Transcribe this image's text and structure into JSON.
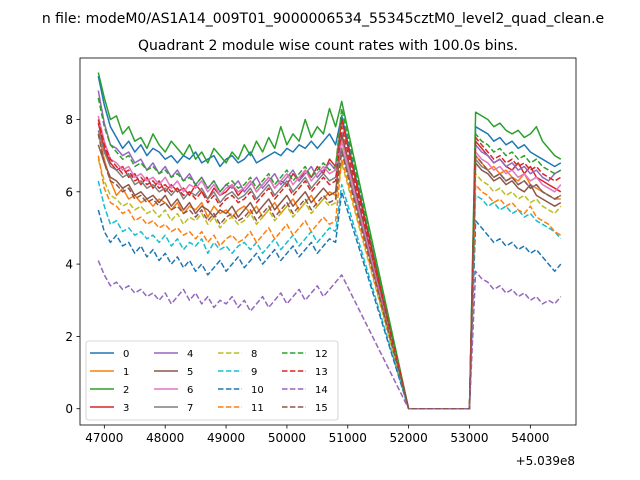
{
  "figure": {
    "suptitle": "n file: modeM0/AS1A14_009T01_9000006534_55345cztM0_level2_quad_clean.e",
    "title": "Quadrant 2 module wise count rates with 100.0s bins.",
    "offset_label": "+5.039e8"
  },
  "chart_data": {
    "type": "line",
    "title": "Quadrant 2 module wise count rates with 100.0s bins.",
    "xlabel": "",
    "ylabel": "",
    "x_offset": 503900000,
    "xlim": [
      46600,
      54750
    ],
    "ylim": [
      -0.45,
      9.7
    ],
    "xticks": [
      47000,
      48000,
      49000,
      50000,
      51000,
      52000,
      53000,
      54000
    ],
    "yticks": [
      0,
      2,
      4,
      6,
      8
    ],
    "grid": false,
    "legend_loc": "lower left",
    "legend_columns": 4,
    "x_start": 46900,
    "x_step": 100,
    "gap": {
      "start": 52000,
      "end": 53000,
      "value": 0
    },
    "series": [
      {
        "name": "0",
        "color": "#1f77b4",
        "dash": "solid",
        "seg1": [
          9.2,
          8.4,
          7.8,
          7.5,
          7.2,
          7.4,
          7.1,
          7.3,
          7.0,
          7.2,
          7.1,
          6.9,
          7.0,
          6.8,
          7.0,
          6.9,
          7.1,
          6.8,
          6.9,
          7.0,
          6.7,
          6.9,
          7.0,
          6.8,
          6.9,
          7.1,
          6.8,
          6.9,
          7.0,
          7.1,
          7.0,
          7.2,
          7.1,
          7.3,
          7.2,
          7.4,
          7.2,
          7.4,
          7.6,
          7.3,
          8.1
        ],
        "seg2": [
          7.8,
          7.7,
          7.6,
          7.4,
          7.5,
          7.3,
          7.4,
          7.2,
          7.3,
          7.1,
          7.0,
          6.9,
          6.8,
          6.7,
          6.8
        ]
      },
      {
        "name": "1",
        "color": "#ff7f0e",
        "dash": "solid",
        "seg1": [
          7.6,
          6.9,
          6.3,
          5.9,
          6.1,
          5.8,
          5.9,
          5.7,
          5.8,
          5.6,
          5.8,
          5.7,
          5.5,
          5.7,
          5.4,
          5.6,
          5.5,
          5.7,
          5.3,
          5.6,
          5.4,
          5.5,
          5.3,
          5.5,
          5.6,
          5.4,
          5.6,
          5.3,
          5.5,
          5.7,
          5.4,
          5.6,
          5.8,
          5.5,
          5.7,
          5.9,
          5.6,
          5.8,
          6.0,
          5.9,
          7.5
        ],
        "seg2": [
          7.0,
          6.8,
          6.6,
          6.7,
          6.5,
          6.6,
          6.4,
          6.3,
          6.5,
          6.2,
          6.1,
          6.0,
          5.9,
          5.8,
          5.8
        ]
      },
      {
        "name": "2",
        "color": "#2ca02c",
        "dash": "solid",
        "seg1": [
          9.3,
          8.6,
          8.0,
          8.1,
          7.6,
          7.8,
          7.4,
          7.5,
          7.2,
          7.6,
          7.3,
          7.1,
          7.4,
          7.2,
          7.0,
          7.3,
          6.9,
          7.1,
          6.8,
          7.2,
          7.0,
          6.8,
          7.1,
          6.9,
          7.3,
          7.0,
          7.4,
          7.1,
          7.5,
          7.2,
          7.8,
          7.3,
          7.6,
          7.4,
          8.0,
          7.5,
          7.8,
          7.6,
          8.3,
          7.8,
          8.5
        ],
        "seg2": [
          8.2,
          8.1,
          8.0,
          7.8,
          7.9,
          7.7,
          7.6,
          7.7,
          7.5,
          7.6,
          7.8,
          7.4,
          7.2,
          7.0,
          6.9
        ]
      },
      {
        "name": "3",
        "color": "#d62728",
        "dash": "solid",
        "seg1": [
          7.9,
          7.2,
          6.8,
          6.6,
          6.7,
          6.4,
          6.5,
          6.2,
          6.4,
          6.1,
          6.3,
          6.0,
          6.2,
          6.0,
          6.1,
          5.9,
          6.2,
          6.0,
          5.8,
          6.1,
          5.9,
          6.0,
          6.2,
          5.9,
          6.1,
          6.3,
          6.0,
          6.2,
          6.4,
          6.1,
          6.3,
          6.2,
          6.5,
          6.3,
          6.6,
          6.4,
          6.7,
          6.5,
          6.9,
          6.7,
          8.0
        ],
        "seg2": [
          7.4,
          7.2,
          7.0,
          6.8,
          6.9,
          6.7,
          6.6,
          6.8,
          6.5,
          6.7,
          6.4,
          6.3,
          6.2,
          6.1,
          6.0
        ]
      },
      {
        "name": "4",
        "color": "#9467bd",
        "dash": "solid",
        "seg1": [
          8.8,
          7.9,
          7.3,
          7.2,
          7.0,
          7.1,
          6.8,
          6.9,
          6.6,
          6.8,
          6.5,
          6.7,
          6.4,
          6.6,
          6.3,
          6.5,
          6.2,
          6.4,
          6.1,
          6.3,
          6.0,
          6.2,
          6.1,
          6.3,
          6.0,
          6.2,
          6.4,
          6.1,
          6.3,
          6.5,
          6.2,
          6.4,
          6.6,
          6.3,
          6.5,
          6.7,
          6.4,
          6.6,
          6.8,
          6.6,
          7.6
        ],
        "seg2": [
          7.3,
          7.1,
          7.0,
          6.8,
          6.9,
          6.7,
          6.8,
          6.6,
          6.7,
          6.5,
          6.6,
          6.4,
          6.3,
          6.5,
          6.6
        ]
      },
      {
        "name": "5",
        "color": "#8c564b",
        "dash": "solid",
        "seg1": [
          7.3,
          6.8,
          6.4,
          6.3,
          6.1,
          6.2,
          5.9,
          6.0,
          5.8,
          5.9,
          5.7,
          5.9,
          5.6,
          5.8,
          5.5,
          5.7,
          5.4,
          5.6,
          5.5,
          5.3,
          5.5,
          5.4,
          5.6,
          5.3,
          5.5,
          5.7,
          5.4,
          5.6,
          5.8,
          5.5,
          5.7,
          5.9,
          5.6,
          5.8,
          6.0,
          5.7,
          5.9,
          6.1,
          5.9,
          6.0,
          7.6
        ],
        "seg2": [
          6.8,
          6.6,
          6.5,
          6.3,
          6.4,
          6.2,
          6.3,
          6.1,
          6.0,
          6.2,
          5.9,
          5.8,
          5.7,
          5.6,
          5.7
        ]
      },
      {
        "name": "6",
        "color": "#e377c2",
        "dash": "solid",
        "seg1": [
          8.1,
          7.4,
          6.9,
          6.8,
          6.6,
          6.7,
          6.4,
          6.5,
          6.3,
          6.4,
          6.2,
          6.4,
          6.1,
          6.3,
          6.0,
          6.2,
          6.1,
          6.3,
          6.0,
          6.2,
          5.9,
          6.1,
          6.2,
          6.0,
          6.1,
          6.3,
          6.0,
          6.2,
          6.4,
          6.1,
          6.3,
          6.5,
          6.2,
          6.4,
          6.6,
          6.3,
          6.5,
          6.7,
          6.5,
          6.6,
          7.4
        ],
        "seg2": [
          7.1,
          6.9,
          6.8,
          6.6,
          6.7,
          6.5,
          6.6,
          6.4,
          6.5,
          6.3,
          6.4,
          6.2,
          6.1,
          6.0,
          6.2
        ]
      },
      {
        "name": "7",
        "color": "#7f7f7f",
        "dash": "solid",
        "seg1": [
          7.7,
          7.1,
          6.7,
          6.6,
          6.4,
          6.5,
          6.2,
          6.3,
          6.1,
          6.2,
          6.0,
          6.1,
          5.9,
          6.1,
          5.8,
          6.0,
          5.9,
          6.1,
          5.8,
          6.0,
          5.7,
          5.9,
          6.0,
          5.8,
          5.9,
          6.1,
          5.8,
          6.0,
          6.2,
          5.9,
          6.1,
          6.3,
          6.0,
          6.2,
          6.4,
          6.1,
          6.3,
          6.5,
          6.3,
          6.4,
          7.2
        ],
        "seg2": [
          6.9,
          6.7,
          6.6,
          6.4,
          6.5,
          6.3,
          6.4,
          6.2,
          6.3,
          6.1,
          6.2,
          6.0,
          5.9,
          5.8,
          5.9
        ]
      },
      {
        "name": "8",
        "color": "#bcbd22",
        "dash": "dashed",
        "seg1": [
          6.9,
          6.3,
          5.9,
          5.8,
          5.6,
          5.7,
          5.5,
          5.6,
          5.4,
          5.5,
          5.3,
          5.5,
          5.2,
          5.4,
          5.1,
          5.3,
          5.2,
          5.4,
          5.1,
          5.3,
          5.0,
          5.2,
          5.3,
          5.1,
          5.2,
          5.4,
          5.1,
          5.3,
          5.5,
          5.2,
          5.4,
          5.6,
          5.3,
          5.5,
          5.7,
          5.4,
          5.6,
          5.8,
          5.6,
          5.7,
          6.8
        ],
        "seg2": [
          6.5,
          6.3,
          6.2,
          6.0,
          6.1,
          5.9,
          6.0,
          5.8,
          5.9,
          5.7,
          5.8,
          5.6,
          5.5,
          5.4,
          5.6
        ]
      },
      {
        "name": "9",
        "color": "#17becf",
        "dash": "dashed",
        "seg1": [
          6.3,
          5.6,
          5.1,
          5.2,
          4.9,
          5.0,
          4.8,
          4.9,
          4.7,
          4.8,
          4.6,
          4.8,
          4.5,
          4.7,
          4.4,
          4.6,
          4.5,
          4.7,
          4.3,
          4.6,
          4.4,
          4.5,
          4.3,
          4.5,
          4.6,
          4.4,
          4.6,
          4.3,
          4.5,
          4.7,
          4.4,
          4.6,
          4.8,
          4.5,
          4.7,
          4.9,
          4.6,
          4.8,
          5.0,
          4.9,
          6.2
        ],
        "seg2": [
          5.9,
          5.8,
          5.6,
          5.7,
          5.5,
          5.6,
          5.4,
          5.5,
          5.3,
          5.4,
          5.2,
          5.1,
          5.0,
          4.9,
          4.7
        ]
      },
      {
        "name": "10",
        "color": "#1f77b4",
        "dash": "dashed",
        "seg1": [
          5.5,
          4.9,
          4.6,
          4.8,
          4.5,
          4.6,
          4.3,
          4.5,
          4.2,
          4.4,
          4.1,
          4.3,
          4.0,
          4.2,
          3.9,
          4.1,
          3.8,
          4.0,
          3.7,
          3.9,
          4.1,
          3.8,
          4.0,
          4.2,
          3.9,
          4.1,
          4.3,
          4.0,
          4.2,
          4.4,
          4.1,
          4.3,
          4.5,
          4.2,
          4.4,
          4.6,
          4.3,
          4.5,
          4.7,
          4.6,
          6.0
        ],
        "seg2": [
          5.2,
          5.0,
          4.8,
          4.6,
          4.7,
          4.5,
          4.6,
          4.4,
          4.5,
          4.3,
          4.4,
          4.2,
          4.0,
          3.8,
          4.0
        ]
      },
      {
        "name": "11",
        "color": "#ff7f0e",
        "dash": "dashed",
        "seg1": [
          7.0,
          6.1,
          5.7,
          5.6,
          5.4,
          5.5,
          5.2,
          5.3,
          5.1,
          5.2,
          5.0,
          5.1,
          4.9,
          5.0,
          4.8,
          4.9,
          4.7,
          4.9,
          4.6,
          4.8,
          4.5,
          4.7,
          4.8,
          4.6,
          4.7,
          4.9,
          4.6,
          4.8,
          5.0,
          4.7,
          4.9,
          5.1,
          4.8,
          5.0,
          5.2,
          4.9,
          5.1,
          5.3,
          5.1,
          5.2,
          6.9
        ],
        "seg2": [
          6.2,
          6.0,
          5.9,
          5.7,
          5.8,
          5.6,
          5.7,
          5.5,
          5.4,
          5.6,
          5.3,
          5.2,
          5.1,
          4.9,
          4.8
        ]
      },
      {
        "name": "12",
        "color": "#2ca02c",
        "dash": "dashed",
        "seg1": [
          8.6,
          7.8,
          7.3,
          7.1,
          6.9,
          7.0,
          6.7,
          6.8,
          6.6,
          6.7,
          6.5,
          6.6,
          6.4,
          6.5,
          6.3,
          6.4,
          6.2,
          6.4,
          6.1,
          6.3,
          6.0,
          6.2,
          6.3,
          6.1,
          6.2,
          6.4,
          6.1,
          6.3,
          6.5,
          6.2,
          6.4,
          6.6,
          6.3,
          6.5,
          6.7,
          6.4,
          6.6,
          6.8,
          6.6,
          6.7,
          8.3
        ],
        "seg2": [
          7.6,
          7.4,
          7.3,
          7.1,
          7.2,
          7.0,
          7.1,
          6.9,
          7.0,
          6.8,
          6.9,
          6.7,
          6.6,
          6.5,
          6.6
        ]
      },
      {
        "name": "13",
        "color": "#d62728",
        "dash": "dashed",
        "seg1": [
          8.0,
          7.3,
          6.9,
          6.7,
          6.5,
          6.6,
          6.3,
          6.4,
          6.2,
          6.3,
          6.1,
          6.2,
          6.0,
          6.1,
          5.9,
          6.0,
          5.8,
          6.0,
          5.7,
          5.9,
          5.6,
          5.8,
          5.9,
          5.7,
          5.8,
          6.0,
          5.7,
          5.9,
          6.1,
          5.8,
          6.0,
          6.2,
          5.9,
          6.1,
          6.3,
          6.0,
          6.2,
          6.4,
          6.2,
          6.3,
          7.8
        ],
        "seg2": [
          7.5,
          7.3,
          7.1,
          6.9,
          7.0,
          6.8,
          6.9,
          6.7,
          6.8,
          6.6,
          6.7,
          6.5,
          6.4,
          6.3,
          6.4
        ]
      },
      {
        "name": "14",
        "color": "#9467bd",
        "dash": "dashed",
        "seg1": [
          4.1,
          3.7,
          3.4,
          3.5,
          3.3,
          3.4,
          3.2,
          3.3,
          3.1,
          3.2,
          3.0,
          3.2,
          2.9,
          3.1,
          3.3,
          3.0,
          3.2,
          2.9,
          3.1,
          2.8,
          3.0,
          2.9,
          3.1,
          2.8,
          3.0,
          2.7,
          2.9,
          3.1,
          2.8,
          3.0,
          3.2,
          2.9,
          3.1,
          3.3,
          3.0,
          3.2,
          3.4,
          3.1,
          3.3,
          3.5,
          3.7
        ],
        "seg2": [
          3.8,
          3.6,
          3.5,
          3.3,
          3.4,
          3.2,
          3.3,
          3.1,
          3.2,
          3.0,
          3.1,
          2.9,
          3.0,
          2.9,
          3.1
        ]
      },
      {
        "name": "15",
        "color": "#8c564b",
        "dash": "dashed",
        "seg1": [
          7.6,
          6.8,
          6.3,
          6.2,
          6.0,
          6.1,
          5.8,
          5.9,
          5.7,
          5.8,
          5.6,
          5.7,
          5.5,
          5.6,
          5.4,
          5.5,
          5.3,
          5.5,
          5.2,
          5.4,
          5.1,
          5.3,
          5.4,
          5.2,
          5.3,
          5.5,
          5.2,
          5.4,
          5.6,
          5.3,
          5.5,
          5.7,
          5.4,
          5.6,
          5.8,
          5.5,
          5.7,
          5.9,
          5.7,
          5.8,
          7.1
        ],
        "seg2": [
          7.0,
          6.8,
          6.6,
          6.4,
          6.5,
          6.3,
          6.4,
          6.2,
          6.3,
          6.1,
          6.2,
          6.0,
          5.9,
          5.8,
          5.9
        ]
      }
    ]
  }
}
